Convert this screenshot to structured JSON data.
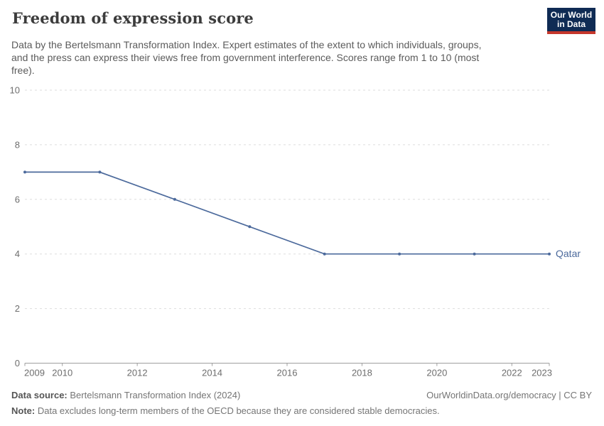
{
  "header": {
    "title": "Freedom of expression score",
    "logo": {
      "line1": "Our World",
      "line2": "in Data"
    }
  },
  "subtitle": {
    "lines": [
      "Data by the Bertelsmann Transformation Index. Expert estimates of the extent to which individuals, groups,",
      "and the press can express their views free from government interference. Scores range from 1 to 10 (most",
      "free)."
    ]
  },
  "chart_data": {
    "type": "line",
    "title": "Freedom of expression score",
    "x": [
      2009,
      2011,
      2013,
      2015,
      2017,
      2019,
      2021,
      2023
    ],
    "series": [
      {
        "name": "Qatar",
        "values": [
          7,
          7,
          6,
          5,
          4,
          4,
          4,
          4
        ],
        "color": "#4C6A9C"
      }
    ],
    "xlim": [
      2009,
      2023
    ],
    "ylim": [
      0,
      10
    ],
    "yticks": [
      0,
      2,
      4,
      6,
      8,
      10
    ],
    "xticks": [
      2009,
      2010,
      2012,
      2014,
      2016,
      2018,
      2020,
      2022,
      2023
    ],
    "grid": "horizontal-dashed",
    "legend_position": "end-of-line-label",
    "colors": {
      "grid": "#dddddd",
      "axis": "#9e9e9e",
      "tick_label": "#6e6e6e"
    }
  },
  "footer": {
    "source_label": "Data source:",
    "source_value": "Bertelsmann Transformation Index (2024)",
    "link": "OurWorldinData.org/democracy | CC BY",
    "note_label": "Note:",
    "note_value": "Data excludes long-term members of the OECD because they are considered stable democracies."
  }
}
